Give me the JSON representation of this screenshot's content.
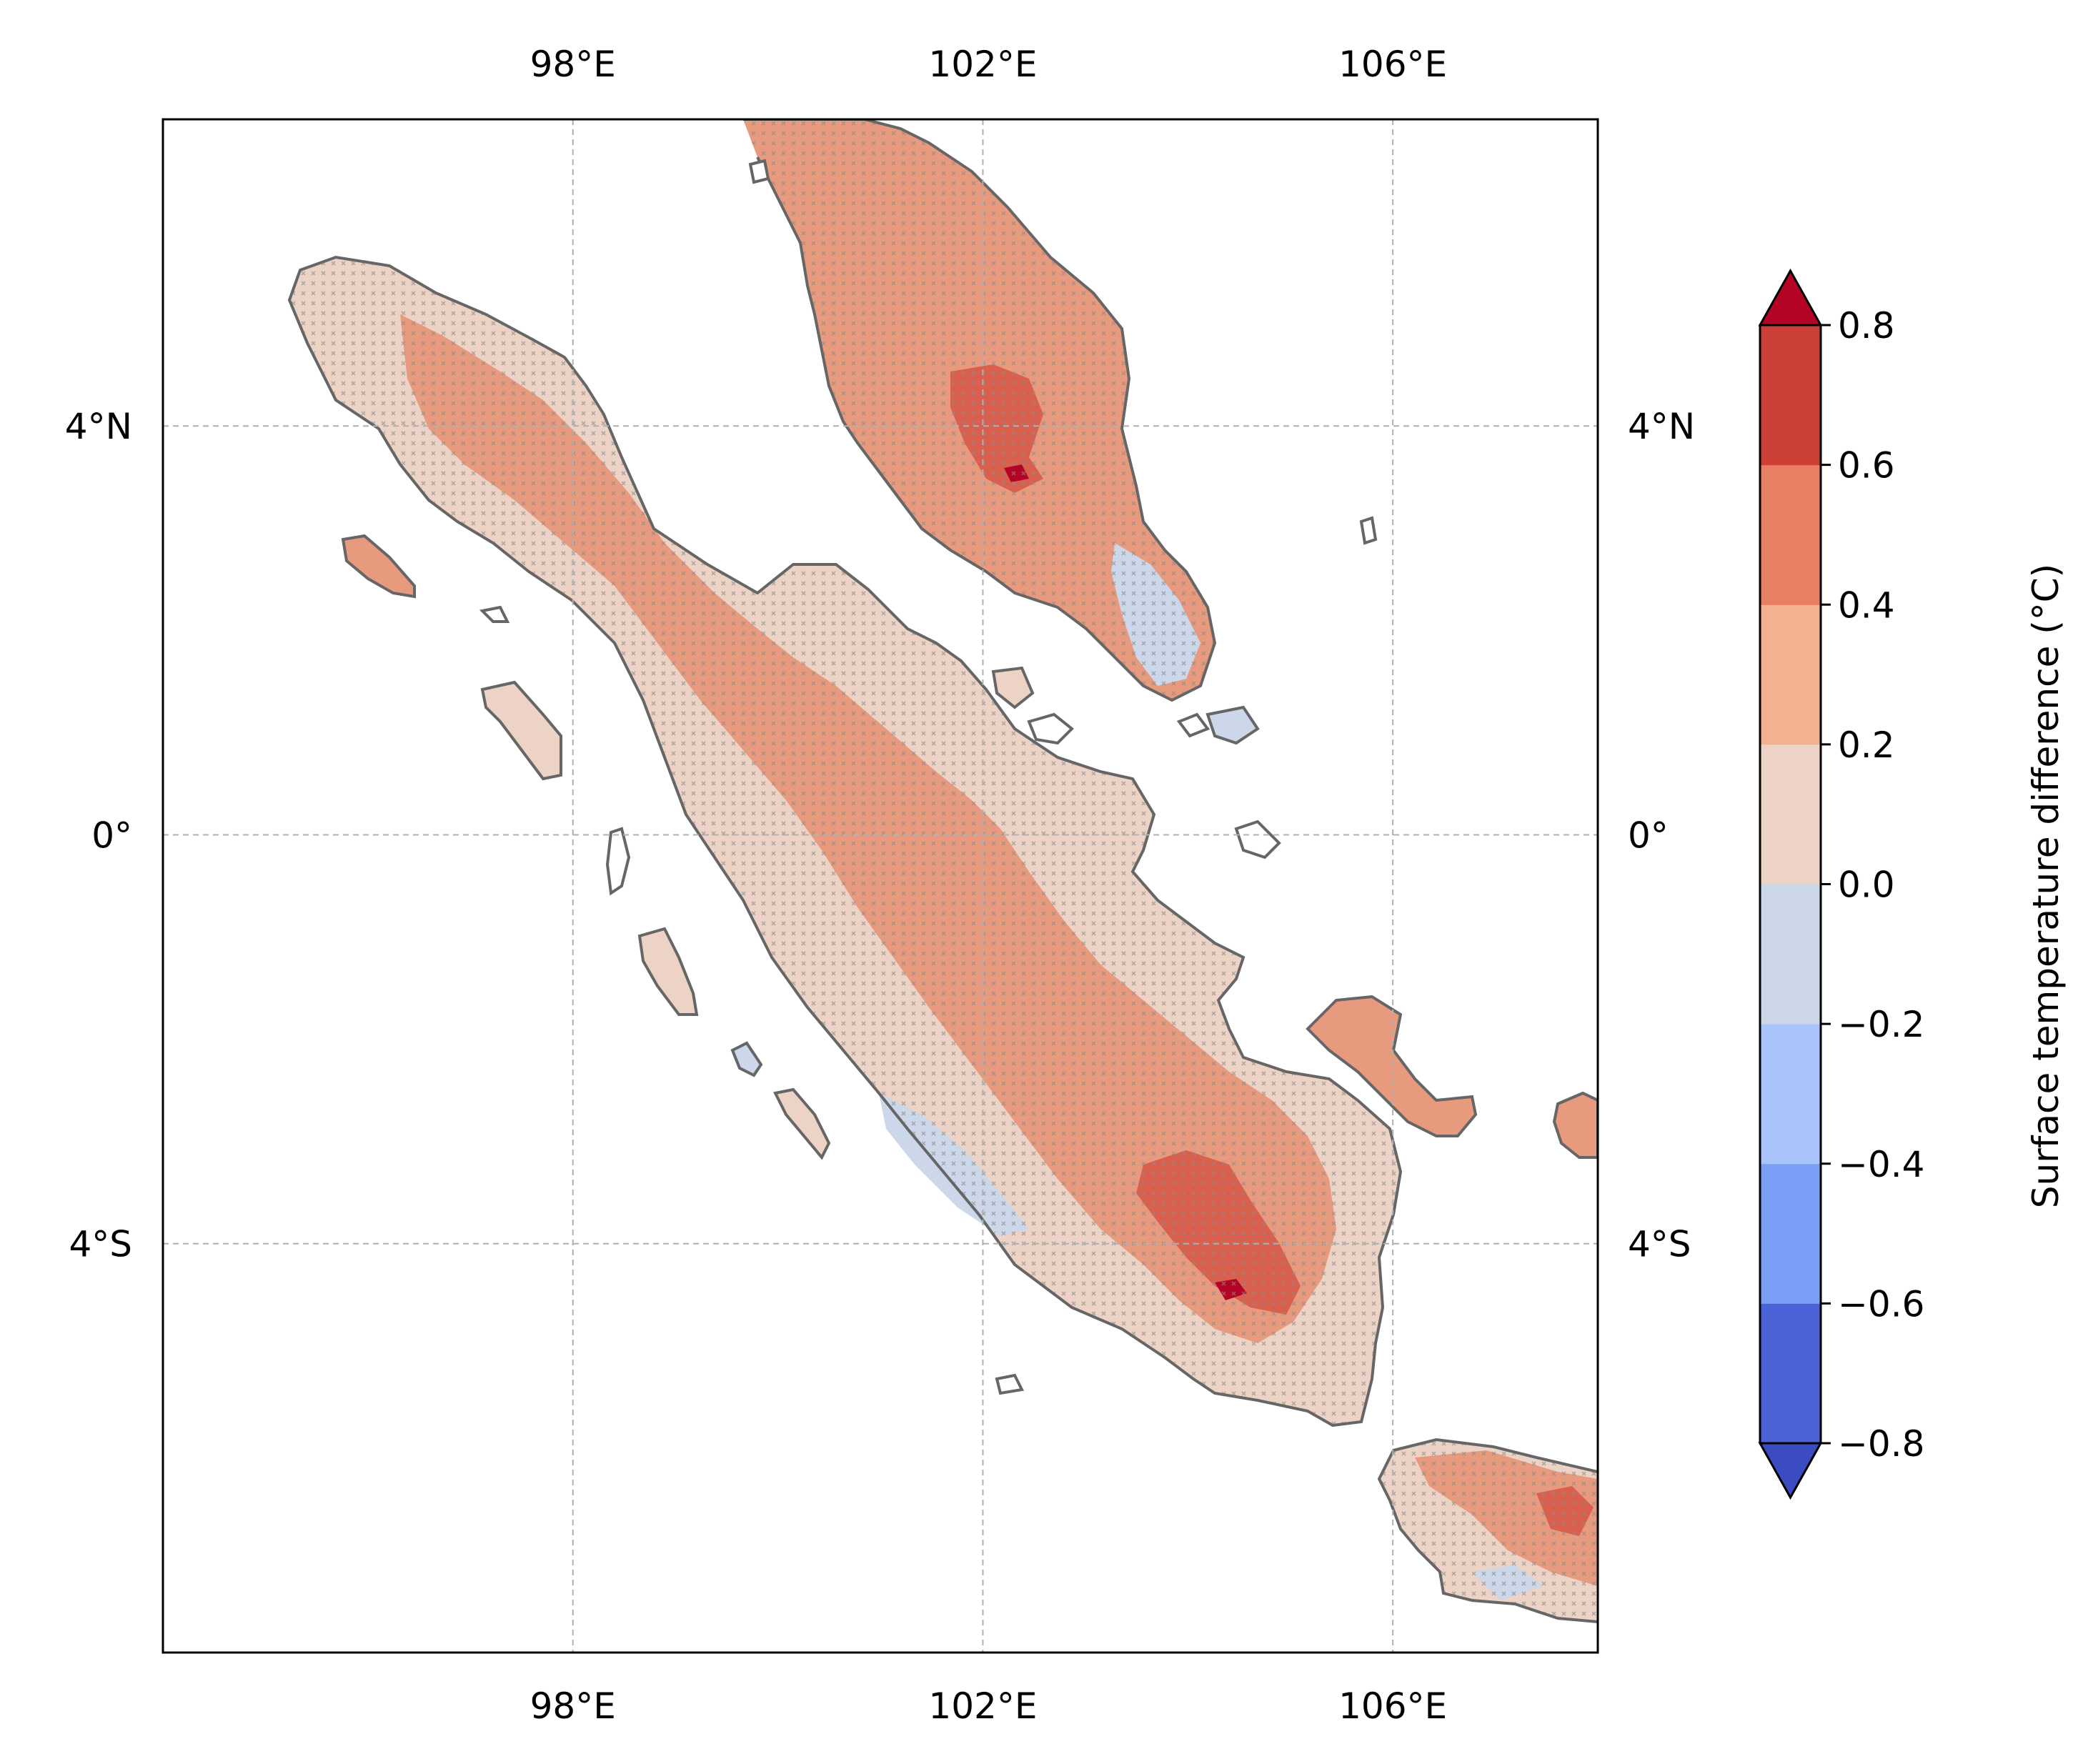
{
  "chart_data": {
    "type": "heatmap",
    "title": "",
    "x_ticks": [
      "98°E",
      "102°E",
      "106°E"
    ],
    "x_tick_values": [
      98,
      102,
      106
    ],
    "y_ticks": [
      "4°N",
      "0°",
      "4°S"
    ],
    "y_tick_values": [
      4,
      0,
      -4
    ],
    "xlim": [
      94,
      108
    ],
    "ylim": [
      -8,
      7
    ],
    "grid": true,
    "colorbar": {
      "label": "Surface temperature difference ( $^\\circ$C)",
      "label_display": "Surface temperature difference (°C)",
      "placement": "right",
      "extend": "both",
      "levels": [
        -0.8,
        -0.6,
        -0.4,
        -0.2,
        0.0,
        0.2,
        0.4,
        0.6,
        0.8
      ],
      "tick_labels": [
        "−0.8",
        "−0.6",
        "−0.4",
        "−0.2",
        "0.0",
        "0.2",
        "0.4",
        "0.6",
        "0.8"
      ],
      "colors": [
        "#4c63d8",
        "#7b9ff7",
        "#a8c4fb",
        "#ccd7ea",
        "#ecd3c6",
        "#f5b092",
        "#e87e63",
        "#cc3f36"
      ],
      "under_color": "#3b4cc0",
      "over_color": "#b40426"
    },
    "hatching": "x markers indicate statistically significant grid points",
    "coastline_color": "#666666"
  }
}
